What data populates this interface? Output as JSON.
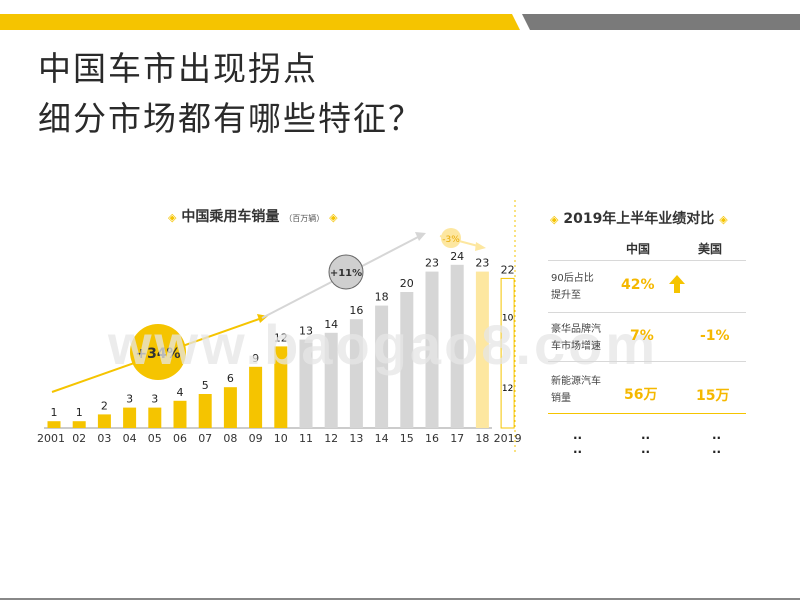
{
  "title": {
    "line1": "中国车市出现拐点",
    "line2": "细分市场都有哪些特征？"
  },
  "colors": {
    "accent": "#F5C400",
    "gray_bar": "#D6D6D6",
    "pale_yellow": "#FDE7A0",
    "dark_gray": "#666666"
  },
  "watermark": "www.baogao8.com",
  "chart_data": {
    "type": "bar",
    "title": "中国乘用车销量",
    "unit": "（百万辆）",
    "categories": [
      "2001",
      "02",
      "03",
      "04",
      "05",
      "06",
      "07",
      "08",
      "09",
      "10",
      "11",
      "12",
      "13",
      "14",
      "15",
      "16",
      "17",
      "18",
      "2019"
    ],
    "values": [
      1,
      1,
      2,
      3,
      3,
      4,
      5,
      6,
      9,
      12,
      13,
      14,
      16,
      18,
      20,
      23,
      24,
      23,
      22
    ],
    "value_labels": [
      "1",
      "1",
      "2",
      "3",
      "3",
      "4",
      "5",
      "6",
      "9",
      "12",
      "13",
      "14",
      "16",
      "18",
      "20",
      "23",
      "24",
      "23",
      "22"
    ],
    "bar_styles": [
      "yellow",
      "yellow",
      "yellow",
      "yellow",
      "yellow",
      "yellow",
      "yellow",
      "yellow",
      "yellow",
      "yellow",
      "gray",
      "gray",
      "gray",
      "gray",
      "gray",
      "gray",
      "gray",
      "pale",
      "outline"
    ],
    "segment_2019": {
      "upper": "10",
      "lower": "12"
    },
    "annotations": {
      "cagr_early": "+34%",
      "cagr_mid": "+11%",
      "cagr_late": "-3%"
    },
    "ylim": [
      0,
      30
    ]
  },
  "comparison": {
    "title": "2019年上半年业绩对比",
    "col_china": "中国",
    "col_us": "美国",
    "rows": [
      {
        "label1": "90后占比",
        "label2": "提升至",
        "china": "42%",
        "us": "",
        "us_icon": "up-arrow-icon"
      },
      {
        "label1": "豪华品牌汽",
        "label2": "车市场增速",
        "china": "7%",
        "us": "-1%"
      },
      {
        "label1": "新能源汽车",
        "label2": "销量",
        "china": "56万",
        "us": "15万"
      }
    ],
    "ellipsis": [
      "..",
      ".."
    ]
  }
}
